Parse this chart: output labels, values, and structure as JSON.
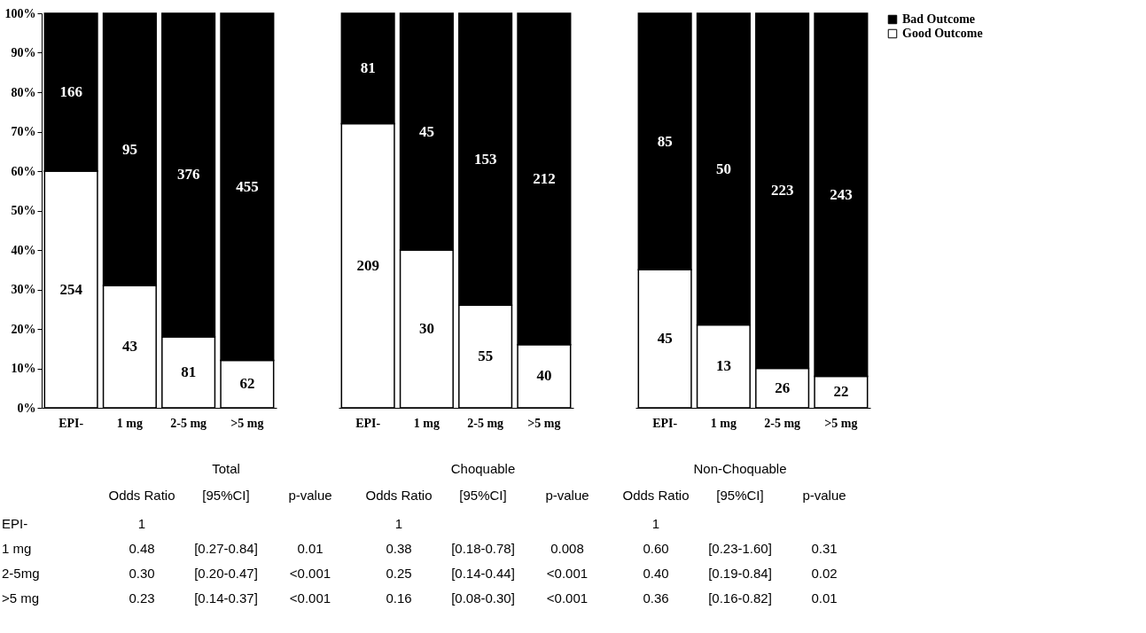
{
  "chart_data": [
    {
      "type": "bar",
      "stacked": true,
      "categories": [
        "EPI-",
        "1 mg",
        "2-5 mg",
        ">5 mg"
      ],
      "ylim": [
        0,
        100
      ],
      "yticks": [
        {
          "value": 0,
          "label": "0%"
        },
        {
          "value": 10,
          "label": "10%"
        },
        {
          "value": 20,
          "label": "20%"
        },
        {
          "value": 30,
          "label": "30%"
        },
        {
          "value": 40,
          "label": "40%"
        },
        {
          "value": 50,
          "label": "50%"
        },
        {
          "value": 60,
          "label": "60%"
        },
        {
          "value": 70,
          "label": "70%"
        },
        {
          "value": 80,
          "label": "80%"
        },
        {
          "value": 90,
          "label": "90%"
        },
        {
          "value": 100,
          "label": "100%"
        }
      ],
      "grid": false,
      "legend": "right",
      "series": [
        {
          "name": "Good Outcome",
          "color": "#ffffff",
          "values": [
            60,
            31,
            18,
            12
          ]
        },
        {
          "name": "Bad Outcome",
          "color": "#000000",
          "values": [
            40,
            69,
            82,
            88
          ]
        }
      ],
      "annotations": [
        "254",
        "43",
        "81",
        "62",
        "166",
        "95",
        "376",
        "455"
      ]
    },
    {
      "type": "bar",
      "stacked": true,
      "categories": [
        "EPI-",
        "1 mg",
        "2-5 mg",
        ">5 mg"
      ],
      "ylim": [
        0,
        100
      ],
      "tick_labels": "x",
      "grid": false,
      "legend": "right",
      "series": [
        {
          "name": "Good Outcome",
          "color": "#ffffff",
          "values": [
            72,
            40,
            26,
            16
          ]
        },
        {
          "name": "Bad Outcome",
          "color": "#000000",
          "values": [
            28,
            60,
            74,
            84
          ]
        }
      ],
      "annotations": [
        "209",
        "30",
        "55",
        "40",
        "81",
        "45",
        "153",
        "212"
      ]
    },
    {
      "type": "bar",
      "stacked": true,
      "categories": [
        "EPI-",
        "1 mg",
        "2-5 mg",
        ">5 mg"
      ],
      "ylim": [
        0,
        100
      ],
      "tick_labels": "x",
      "grid": false,
      "legend": "right",
      "series": [
        {
          "name": "Good Outcome",
          "color": "#ffffff",
          "values": [
            35,
            21,
            10,
            8
          ]
        },
        {
          "name": "Bad Outcome",
          "color": "#000000",
          "values": [
            65,
            79,
            90,
            92
          ]
        }
      ],
      "annotations": [
        "45",
        "13",
        "26",
        "22",
        "85",
        "50",
        "223",
        "243"
      ]
    },
    {
      "type": "other",
      "annotations": [
        "Total",
        "Choquable",
        "Non-Choquable",
        "Odds Ratio",
        "[95%CI]",
        "p-value",
        "Odds Ratio",
        "[95%CI]",
        "p-value",
        "Odds Ratio",
        "[95%CI]",
        "p-value",
        "EPI-",
        "1",
        "1",
        "1",
        "1 mg",
        "0.48",
        "[0.27-0.84]",
        "0.01",
        "0.38",
        "[0.18-0.78]",
        "0.008",
        "0.60",
        "[0.23-1.60]",
        "0.31",
        "2-5mg",
        "0.30",
        "[0.20-0.47]",
        "<0.001",
        "0.25",
        "[0.14-0.44]",
        "<0.001",
        "0.40",
        "[0.19-0.84]",
        "0.02",
        ">5 mg",
        "0.23",
        "[0.14-0.37]",
        "<0.001",
        "0.16",
        "[0.08-0.30]",
        "<0.001",
        "0.36",
        "[0.16-0.82]",
        "0.01"
      ]
    }
  ]
}
